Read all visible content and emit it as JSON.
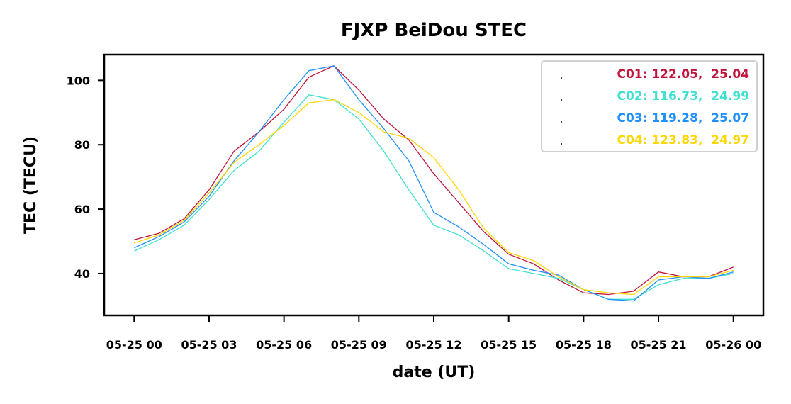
{
  "chart_data": {
    "type": "line",
    "title": "FJXP BeiDou STEC",
    "xlabel": "date (UT)",
    "ylabel": "TEC (TECU)",
    "x_ticks": [
      "05-25 00",
      "05-25 03",
      "05-25 06",
      "05-25 09",
      "05-25 12",
      "05-25 15",
      "05-25 18",
      "05-25 21",
      "05-26 00"
    ],
    "y_ticks": [
      40,
      60,
      80,
      100
    ],
    "xlim_hours": [
      -1.2,
      25.2
    ],
    "ylim": [
      27,
      108
    ],
    "grid": false,
    "legend_position": "top-right",
    "series": [
      {
        "name": "C01: 122.05,  25.04",
        "color": "#c0143c",
        "x_hours": [
          0,
          1,
          2,
          3,
          4,
          5,
          6,
          7,
          8,
          9,
          10,
          11,
          12,
          13,
          14,
          15,
          16,
          17,
          18,
          19,
          20,
          21,
          22,
          23,
          24
        ],
        "values": [
          50.5,
          52.5,
          57,
          66,
          78,
          84,
          91,
          101,
          104.5,
          97,
          88,
          81.5,
          71,
          62,
          53,
          46,
          43,
          38,
          34,
          33.5,
          34.5,
          40.5,
          39,
          39,
          42
        ]
      },
      {
        "name": "C02: 116.73,  24.99",
        "color": "#40e0d0",
        "x_hours": [
          0,
          1,
          2,
          3,
          4,
          5,
          6,
          7,
          8,
          9,
          10,
          11,
          12,
          13,
          14,
          15,
          16,
          17,
          18,
          19,
          20,
          21,
          22,
          23,
          24
        ],
        "values": [
          47,
          50.5,
          55,
          63,
          72,
          78,
          87,
          95.5,
          94,
          88,
          78,
          66,
          55,
          52,
          47,
          41.5,
          40,
          38.5,
          35,
          32,
          32,
          36.5,
          38.5,
          38.5,
          40
        ]
      },
      {
        "name": "C03: 119.28,  25.07",
        "color": "#1e90ff",
        "x_hours": [
          0,
          1,
          2,
          3,
          4,
          5,
          6,
          7,
          8,
          9,
          10,
          11,
          12,
          13,
          14,
          15,
          16,
          17,
          18,
          19,
          20,
          21,
          22,
          23,
          24
        ],
        "values": [
          48,
          51.5,
          56,
          64,
          75,
          84,
          94,
          103,
          104.5,
          94,
          85,
          75,
          59,
          54.5,
          49,
          43,
          41,
          39.5,
          35,
          32,
          31.5,
          38,
          39,
          38.5,
          40.5
        ]
      },
      {
        "name": "C04: 123.83,  24.97",
        "color": "#ffd700",
        "x_hours": [
          0,
          1,
          2,
          3,
          4,
          5,
          6,
          7,
          8,
          9,
          10,
          11,
          12,
          13,
          14,
          15,
          16,
          17,
          18,
          19,
          20,
          21,
          22,
          23,
          24
        ],
        "values": [
          49.5,
          52,
          56.5,
          65,
          74.5,
          80,
          86,
          93,
          94,
          90,
          84,
          82,
          76,
          66,
          54,
          46.5,
          44,
          39,
          35,
          34,
          33.5,
          39,
          39,
          39,
          41
        ]
      }
    ]
  }
}
